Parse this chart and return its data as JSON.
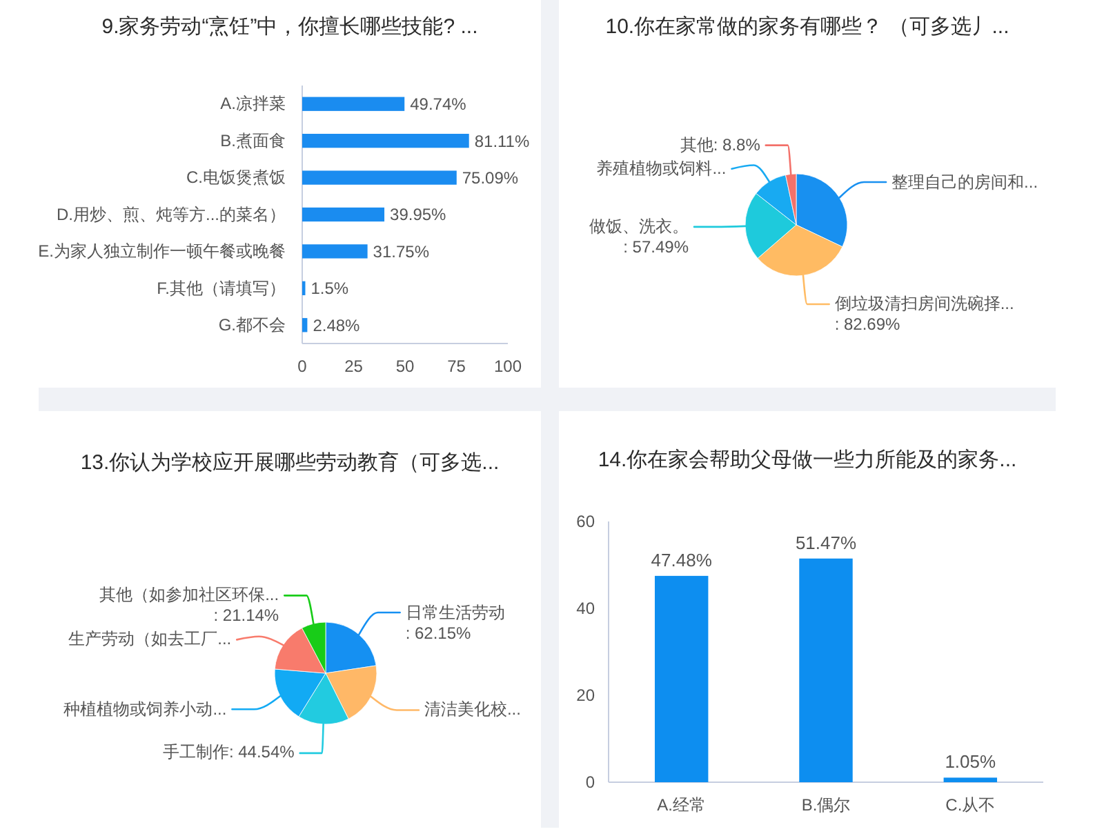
{
  "chart_data": [
    {
      "type": "bar",
      "orientation": "horizontal",
      "title": "9.家务劳动“烹饪”中，你擅长哪些技能? ...",
      "categories": [
        "A.凉拌菜",
        "B.煮面食",
        "C.电饭煲煮饭",
        "D.用炒、煎、炖等方...的菜名）",
        "E.为家人独立制作一顿午餐或晚餐",
        "F.其他（请填写）",
        "G.都不会"
      ],
      "values": [
        49.74,
        81.11,
        75.09,
        39.95,
        31.75,
        1.5,
        2.48
      ],
      "value_labels": [
        "49.74%",
        "81.11%",
        "75.09%",
        "39.95%",
        "31.75%",
        "1.5%",
        "2.48%"
      ],
      "color": "#1a8cf0",
      "xlim": [
        0,
        100
      ],
      "xticks": [
        0,
        25,
        50,
        75,
        100
      ]
    },
    {
      "type": "pie",
      "title": "10.你在家常做的家务有哪些？ （可多选丿...",
      "categories": [
        "整理自己的房间和...",
        "倒垃圾清扫房间洗碗择...",
        "做饭、洗衣。",
        "养殖植物或饲料...",
        "其他"
      ],
      "values": [
        84,
        82.69,
        57.49,
        29,
        8.8
      ],
      "value_labels": [
        null,
        ": 82.69%",
        ": 57.49%",
        null,
        ": 8.8%"
      ],
      "colors": [
        "#1890f0",
        "#ffbb63",
        "#1ecadc",
        "#18aaf2",
        "#f3716a"
      ]
    },
    {
      "type": "pie",
      "title": "13.你认为学校应开展哪些劳动教育（可多选...",
      "categories": [
        "日常生活劳动",
        "清洁美化校...",
        "手工制作",
        "种植植物或饲养小动...",
        "生产劳动（如去工厂...",
        "其他（如参加社区环保..."
      ],
      "values": [
        62.15,
        55,
        44.54,
        48,
        44,
        21.14
      ],
      "value_labels": [
        ": 62.15%",
        null,
        ": 44.54%",
        null,
        null,
        ": 21.14%"
      ],
      "colors": [
        "#1590f2",
        "#ffb867",
        "#22cbe0",
        "#12aaf4",
        "#f87b6c",
        "#18cc18"
      ]
    },
    {
      "type": "bar",
      "title": "14.你在家会帮助父母做一些力所能及的家务...",
      "categories": [
        "A.经常",
        "B.偶尔",
        "C.从不"
      ],
      "values": [
        47.48,
        51.47,
        1.05
      ],
      "value_labels": [
        "47.48%",
        "51.47%",
        "1.05%"
      ],
      "color": "#0d8ef0",
      "ylim": [
        0,
        60
      ],
      "yticks": [
        0,
        20,
        40,
        60
      ]
    }
  ]
}
